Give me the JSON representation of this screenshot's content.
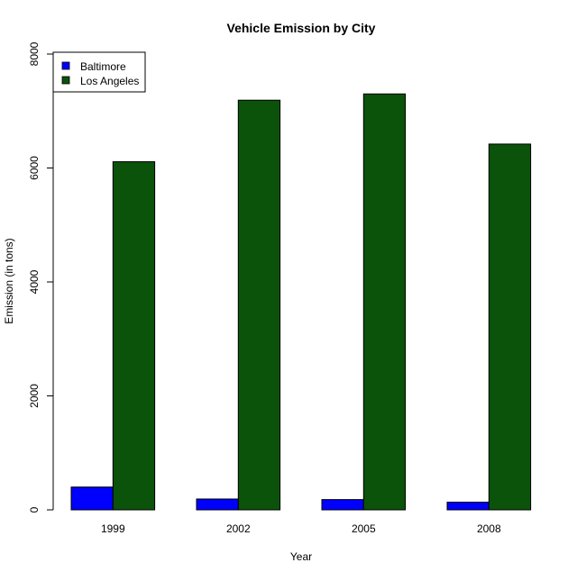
{
  "chart_data": {
    "type": "bar",
    "title": "Vehicle Emission by City",
    "xlabel": "Year",
    "ylabel": "Emission (in tons)",
    "categories": [
      "1999",
      "2002",
      "2005",
      "2008"
    ],
    "series": [
      {
        "name": "Baltimore",
        "color": "#0000ff",
        "values": [
          400,
          190,
          180,
          135
        ]
      },
      {
        "name": "Los Angeles",
        "color": "#0b520b",
        "values": [
          6110,
          7190,
          7300,
          6420
        ]
      }
    ],
    "ylim": [
      0,
      8000
    ],
    "yticks": [
      0,
      2000,
      4000,
      6000,
      8000
    ],
    "grid": false,
    "legend_position": "top-left",
    "bar_layout": "grouped"
  }
}
